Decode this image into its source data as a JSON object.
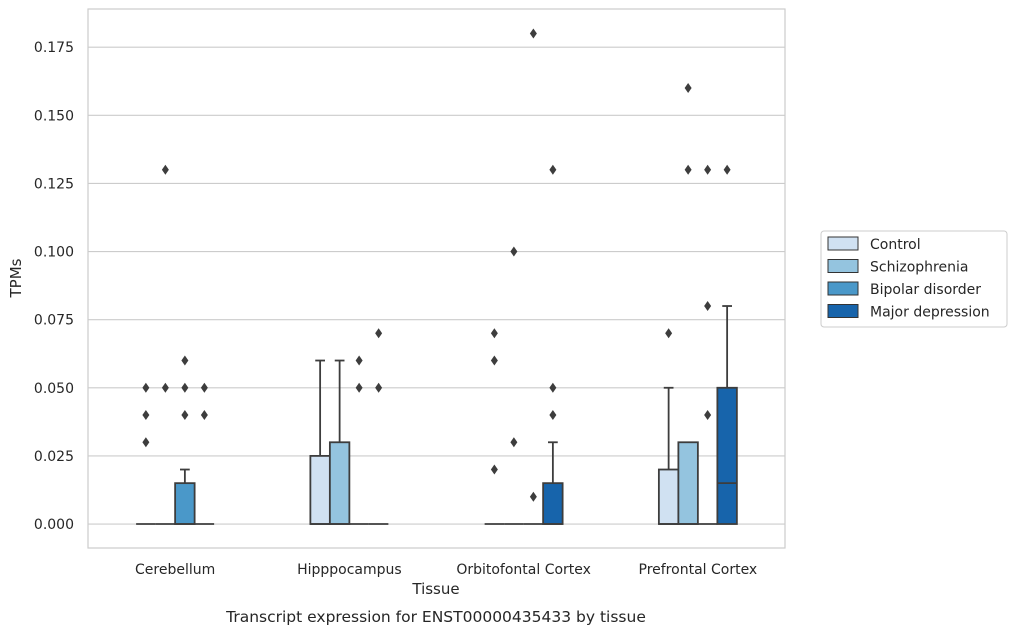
{
  "chart_data": {
    "type": "box",
    "title": "",
    "caption": "Transcript expression for ENST00000435433 by tissue",
    "xlabel": "Tissue",
    "ylabel": "TPMs",
    "ylim": [
      -0.0088,
      0.189
    ],
    "yticks": [
      0.0,
      0.025,
      0.05,
      0.075,
      0.1,
      0.125,
      0.15,
      0.175
    ],
    "ytick_labels": [
      "0.000",
      "0.025",
      "0.050",
      "0.075",
      "0.100",
      "0.125",
      "0.150",
      "0.175"
    ],
    "grid": "y",
    "legend_position": "right",
    "categories": [
      "Cerebellum",
      "Hipppocampus",
      "Orbitofontal Cortex",
      "Prefrontal Cortex"
    ],
    "series": [
      {
        "name": "Control",
        "color": "#d0e1f2",
        "boxes": [
          {
            "q1": 0,
            "median": 0,
            "q3": 0,
            "whisker_low": 0,
            "whisker_high": 0,
            "outliers": [
              0.03,
              0.04,
              0.05
            ]
          },
          {
            "q1": 0,
            "median": 0,
            "q3": 0.025,
            "whisker_low": 0,
            "whisker_high": 0.06,
            "outliers": []
          },
          {
            "q1": 0,
            "median": 0,
            "q3": 0,
            "whisker_low": 0,
            "whisker_high": 0,
            "outliers": [
              0.02,
              0.06,
              0.07
            ]
          },
          {
            "q1": 0,
            "median": 0,
            "q3": 0.02,
            "whisker_low": 0,
            "whisker_high": 0.05,
            "outliers": [
              0.07
            ]
          }
        ]
      },
      {
        "name": "Schizophrenia",
        "color": "#94c4df",
        "boxes": [
          {
            "q1": 0,
            "median": 0,
            "q3": 0,
            "whisker_low": 0,
            "whisker_high": 0,
            "outliers": [
              0.05,
              0.13
            ]
          },
          {
            "q1": 0,
            "median": 0,
            "q3": 0.03,
            "whisker_low": 0,
            "whisker_high": 0.06,
            "outliers": []
          },
          {
            "q1": 0,
            "median": 0,
            "q3": 0,
            "whisker_low": 0,
            "whisker_high": 0,
            "outliers": [
              0.03,
              0.1
            ]
          },
          {
            "q1": 0,
            "median": 0,
            "q3": 0.03,
            "whisker_low": 0,
            "whisker_high": 0.03,
            "outliers": [
              0.13,
              0.16
            ]
          }
        ]
      },
      {
        "name": "Bipolar disorder",
        "color": "#4a98c9",
        "boxes": [
          {
            "q1": 0,
            "median": 0,
            "q3": 0.015,
            "whisker_low": 0,
            "whisker_high": 0.02,
            "outliers": [
              0.04,
              0.05,
              0.06
            ]
          },
          {
            "q1": 0,
            "median": 0,
            "q3": 0,
            "whisker_low": 0,
            "whisker_high": 0,
            "outliers": [
              0.05,
              0.06
            ]
          },
          {
            "q1": 0,
            "median": 0,
            "q3": 0,
            "whisker_low": 0,
            "whisker_high": 0,
            "outliers": [
              0.01,
              0.18
            ]
          },
          {
            "q1": 0,
            "median": 0,
            "q3": 0,
            "whisker_low": 0,
            "whisker_high": 0,
            "outliers": [
              0.04,
              0.08,
              0.13
            ]
          }
        ]
      },
      {
        "name": "Major depression",
        "color": "#1764ab",
        "boxes": [
          {
            "q1": 0,
            "median": 0,
            "q3": 0,
            "whisker_low": 0,
            "whisker_high": 0,
            "outliers": [
              0.04,
              0.05
            ]
          },
          {
            "q1": 0,
            "median": 0,
            "q3": 0,
            "whisker_low": 0,
            "whisker_high": 0,
            "outliers": [
              0.05,
              0.07
            ]
          },
          {
            "q1": 0,
            "median": 0,
            "q3": 0.015,
            "whisker_low": 0,
            "whisker_high": 0.03,
            "outliers": [
              0.04,
              0.05,
              0.13
            ]
          },
          {
            "q1": 0,
            "median": 0.015,
            "q3": 0.05,
            "whisker_low": 0,
            "whisker_high": 0.08,
            "outliers": [
              0.13
            ]
          }
        ]
      }
    ]
  }
}
